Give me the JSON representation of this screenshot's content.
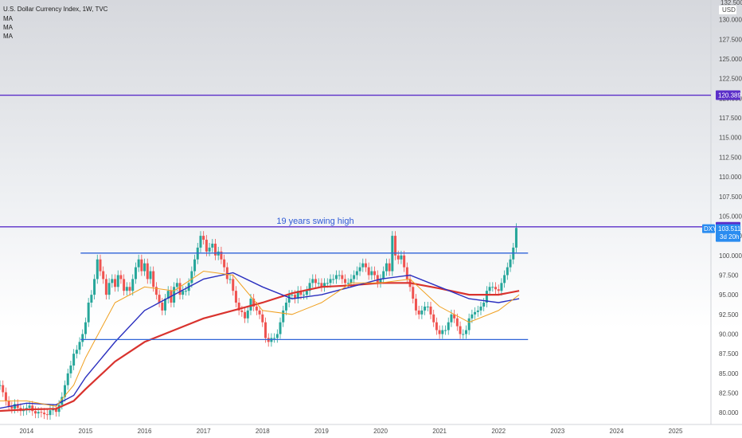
{
  "chart_data": {
    "type": "candlestick",
    "title": "U.S. Dollar Currency Index, 1W, TVC",
    "indicators": [
      "MA",
      "MA",
      "MA"
    ],
    "currency": "USD",
    "symbol": "DXY",
    "ylim": [
      78.5,
      132.5
    ],
    "y_ticks": [
      "80.000",
      "82.500",
      "85.000",
      "87.500",
      "90.000",
      "92.500",
      "95.000",
      "97.500",
      "100.000",
      "102.500",
      "105.000",
      "107.500",
      "110.000",
      "112.500",
      "115.000",
      "117.500",
      "120.000",
      "122.500",
      "125.000",
      "127.500",
      "130.000"
    ],
    "top_partial_label": "132.500",
    "x_ticks": [
      "2014",
      "2015",
      "2016",
      "2017",
      "2018",
      "2019",
      "2020",
      "2021",
      "2022",
      "2023",
      "2024",
      "2025"
    ],
    "horizontal_lines": [
      {
        "value": 120.389,
        "label": "120.389",
        "color": "#5b2fc9"
      },
      {
        "value": 103.646,
        "label": "103.646",
        "color": "#5b2fc9"
      }
    ],
    "range_lines": [
      {
        "value": 100.3,
        "from": "2014-12",
        "to": "2022-07",
        "color": "#2f64d8"
      },
      {
        "value": 89.3,
        "from": "2014-12",
        "to": "2022-07",
        "color": "#2f64d8"
      }
    ],
    "annotation": "19 years swing high",
    "price_badge": {
      "symbol": "DXY",
      "value": "103.511",
      "countdown": "3d 20h"
    },
    "candles_close": [
      [
        2013.55,
        83.5
      ],
      [
        2013.6,
        82.6
      ],
      [
        2013.65,
        81.5
      ],
      [
        2013.7,
        80.8
      ],
      [
        2013.75,
        80.5
      ],
      [
        2013.8,
        81.1
      ],
      [
        2013.85,
        80.6
      ],
      [
        2013.9,
        80.2
      ],
      [
        2013.95,
        80.3
      ],
      [
        2014.0,
        80.6
      ],
      [
        2014.05,
        80.9
      ],
      [
        2014.1,
        80.2
      ],
      [
        2014.15,
        79.9
      ],
      [
        2014.2,
        80.1
      ],
      [
        2014.25,
        80.0
      ],
      [
        2014.3,
        79.8
      ],
      [
        2014.35,
        79.7
      ],
      [
        2014.4,
        80.3
      ],
      [
        2014.45,
        80.5
      ],
      [
        2014.5,
        80.1
      ],
      [
        2014.55,
        81.0
      ],
      [
        2014.6,
        82.0
      ],
      [
        2014.65,
        83.5
      ],
      [
        2014.7,
        85.0
      ],
      [
        2014.75,
        86.0
      ],
      [
        2014.8,
        87.5
      ],
      [
        2014.85,
        88.0
      ],
      [
        2014.9,
        89.0
      ],
      [
        2014.95,
        90.0
      ],
      [
        2015.0,
        91.5
      ],
      [
        2015.05,
        94.0
      ],
      [
        2015.1,
        95.0
      ],
      [
        2015.15,
        97.0
      ],
      [
        2015.2,
        99.5
      ],
      [
        2015.25,
        98.0
      ],
      [
        2015.3,
        97.0
      ],
      [
        2015.35,
        95.0
      ],
      [
        2015.4,
        96.5
      ],
      [
        2015.45,
        97.0
      ],
      [
        2015.5,
        96.0
      ],
      [
        2015.55,
        97.5
      ],
      [
        2015.6,
        97.0
      ],
      [
        2015.65,
        95.5
      ],
      [
        2015.7,
        96.0
      ],
      [
        2015.75,
        95.5
      ],
      [
        2015.8,
        97.0
      ],
      [
        2015.85,
        98.5
      ],
      [
        2015.9,
        99.5
      ],
      [
        2015.95,
        98.0
      ],
      [
        2016.0,
        99.0
      ],
      [
        2016.05,
        97.0
      ],
      [
        2016.1,
        98.0
      ],
      [
        2016.15,
        96.0
      ],
      [
        2016.2,
        95.0
      ],
      [
        2016.25,
        94.0
      ],
      [
        2016.3,
        93.0
      ],
      [
        2016.35,
        94.5
      ],
      [
        2016.4,
        95.5
      ],
      [
        2016.45,
        94.0
      ],
      [
        2016.5,
        96.0
      ],
      [
        2016.55,
        96.5
      ],
      [
        2016.6,
        95.0
      ],
      [
        2016.65,
        95.5
      ],
      [
        2016.7,
        95.5
      ],
      [
        2016.75,
        96.5
      ],
      [
        2016.8,
        98.0
      ],
      [
        2016.85,
        99.5
      ],
      [
        2016.9,
        101.0
      ],
      [
        2016.95,
        102.5
      ],
      [
        2017.0,
        102.0
      ],
      [
        2017.05,
        100.5
      ],
      [
        2017.1,
        101.0
      ],
      [
        2017.15,
        101.5
      ],
      [
        2017.2,
        100.0
      ],
      [
        2017.25,
        100.5
      ],
      [
        2017.3,
        99.5
      ],
      [
        2017.35,
        98.5
      ],
      [
        2017.4,
        97.0
      ],
      [
        2017.45,
        97.0
      ],
      [
        2017.5,
        95.5
      ],
      [
        2017.55,
        94.0
      ],
      [
        2017.6,
        93.0
      ],
      [
        2017.65,
        92.8
      ],
      [
        2017.7,
        92.0
      ],
      [
        2017.75,
        93.0
      ],
      [
        2017.8,
        94.5
      ],
      [
        2017.85,
        93.5
      ],
      [
        2017.9,
        93.0
      ],
      [
        2017.95,
        92.5
      ],
      [
        2018.0,
        91.5
      ],
      [
        2018.05,
        89.5
      ],
      [
        2018.1,
        89.0
      ],
      [
        2018.15,
        89.5
      ],
      [
        2018.2,
        89.5
      ],
      [
        2018.25,
        90.0
      ],
      [
        2018.3,
        91.5
      ],
      [
        2018.35,
        93.0
      ],
      [
        2018.4,
        94.0
      ],
      [
        2018.45,
        95.0
      ],
      [
        2018.5,
        95.0
      ],
      [
        2018.55,
        94.5
      ],
      [
        2018.6,
        95.5
      ],
      [
        2018.65,
        95.0
      ],
      [
        2018.7,
        95.0
      ],
      [
        2018.75,
        95.5
      ],
      [
        2018.8,
        96.5
      ],
      [
        2018.85,
        97.0
      ],
      [
        2018.9,
        96.5
      ],
      [
        2018.95,
        96.5
      ],
      [
        2019.0,
        96.0
      ],
      [
        2019.05,
        96.5
      ],
      [
        2019.1,
        96.5
      ],
      [
        2019.15,
        97.0
      ],
      [
        2019.2,
        97.0
      ],
      [
        2019.25,
        97.5
      ],
      [
        2019.3,
        97.5
      ],
      [
        2019.35,
        97.0
      ],
      [
        2019.4,
        96.5
      ],
      [
        2019.45,
        96.5
      ],
      [
        2019.5,
        97.0
      ],
      [
        2019.55,
        97.5
      ],
      [
        2019.6,
        98.0
      ],
      [
        2019.65,
        98.5
      ],
      [
        2019.7,
        99.0
      ],
      [
        2019.75,
        98.5
      ],
      [
        2019.8,
        97.5
      ],
      [
        2019.85,
        98.0
      ],
      [
        2019.9,
        97.5
      ],
      [
        2019.95,
        96.5
      ],
      [
        2020.0,
        97.0
      ],
      [
        2020.05,
        98.0
      ],
      [
        2020.1,
        99.0
      ],
      [
        2020.15,
        98.0
      ],
      [
        2020.2,
        102.5
      ],
      [
        2020.25,
        100.0
      ],
      [
        2020.3,
        99.5
      ],
      [
        2020.35,
        100.0
      ],
      [
        2020.4,
        98.5
      ],
      [
        2020.45,
        97.0
      ],
      [
        2020.5,
        96.0
      ],
      [
        2020.55,
        94.5
      ],
      [
        2020.6,
        93.0
      ],
      [
        2020.65,
        92.5
      ],
      [
        2020.7,
        93.0
      ],
      [
        2020.75,
        93.5
      ],
      [
        2020.8,
        93.5
      ],
      [
        2020.85,
        92.5
      ],
      [
        2020.9,
        91.5
      ],
      [
        2020.95,
        90.5
      ],
      [
        2021.0,
        90.0
      ],
      [
        2021.05,
        90.5
      ],
      [
        2021.1,
        90.5
      ],
      [
        2021.15,
        91.5
      ],
      [
        2021.2,
        92.5
      ],
      [
        2021.25,
        92.0
      ],
      [
        2021.3,
        91.0
      ],
      [
        2021.35,
        90.0
      ],
      [
        2021.4,
        90.0
      ],
      [
        2021.45,
        90.5
      ],
      [
        2021.5,
        92.0
      ],
      [
        2021.55,
        92.5
      ],
      [
        2021.6,
        92.8
      ],
      [
        2021.65,
        93.0
      ],
      [
        2021.7,
        93.5
      ],
      [
        2021.75,
        94.0
      ],
      [
        2021.8,
        95.5
      ],
      [
        2021.85,
        96.0
      ],
      [
        2021.9,
        96.0
      ],
      [
        2021.95,
        95.7
      ],
      [
        2022.0,
        95.5
      ],
      [
        2022.05,
        96.5
      ],
      [
        2022.1,
        97.5
      ],
      [
        2022.15,
        98.5
      ],
      [
        2022.2,
        99.5
      ],
      [
        2022.25,
        101.0
      ],
      [
        2022.3,
        103.5
      ]
    ],
    "ma_series": [
      {
        "color": "#d9332e",
        "points": [
          [
            2013.5,
            80.2
          ],
          [
            2014.0,
            80.4
          ],
          [
            2014.5,
            80.5
          ],
          [
            2014.8,
            81.5
          ],
          [
            2015.0,
            83.0
          ],
          [
            2015.5,
            86.5
          ],
          [
            2016.0,
            89.0
          ],
          [
            2016.5,
            90.5
          ],
          [
            2017.0,
            92.0
          ],
          [
            2017.5,
            93.0
          ],
          [
            2018.0,
            94.0
          ],
          [
            2018.5,
            95.2
          ],
          [
            2019.0,
            96.0
          ],
          [
            2019.5,
            96.2
          ],
          [
            2020.0,
            96.5
          ],
          [
            2020.5,
            96.5
          ],
          [
            2021.0,
            95.8
          ],
          [
            2021.5,
            95.0
          ],
          [
            2022.0,
            95.0
          ],
          [
            2022.35,
            95.5
          ]
        ]
      },
      {
        "color": "#2a2fbf",
        "points": [
          [
            2013.5,
            80.5
          ],
          [
            2014.0,
            81.2
          ],
          [
            2014.5,
            81.0
          ],
          [
            2014.8,
            82.2
          ],
          [
            2015.0,
            84.5
          ],
          [
            2015.5,
            89.0
          ],
          [
            2016.0,
            93.0
          ],
          [
            2016.5,
            95.0
          ],
          [
            2017.0,
            97.0
          ],
          [
            2017.5,
            97.8
          ],
          [
            2018.0,
            96.0
          ],
          [
            2018.5,
            94.5
          ],
          [
            2019.0,
            95.0
          ],
          [
            2019.5,
            96.0
          ],
          [
            2020.0,
            97.0
          ],
          [
            2020.5,
            97.5
          ],
          [
            2021.0,
            96.0
          ],
          [
            2021.5,
            94.5
          ],
          [
            2022.0,
            94.0
          ],
          [
            2022.35,
            94.5
          ]
        ]
      },
      {
        "color": "#f0a020",
        "points": [
          [
            2013.5,
            81.5
          ],
          [
            2014.0,
            81.5
          ],
          [
            2014.5,
            80.8
          ],
          [
            2014.8,
            83.5
          ],
          [
            2015.0,
            87.0
          ],
          [
            2015.5,
            94.0
          ],
          [
            2016.0,
            96.0
          ],
          [
            2016.5,
            95.5
          ],
          [
            2017.0,
            98.0
          ],
          [
            2017.5,
            97.5
          ],
          [
            2018.0,
            93.0
          ],
          [
            2018.5,
            92.5
          ],
          [
            2019.0,
            94.0
          ],
          [
            2019.5,
            96.5
          ],
          [
            2020.0,
            96.5
          ],
          [
            2020.5,
            97.0
          ],
          [
            2021.0,
            93.5
          ],
          [
            2021.5,
            91.5
          ],
          [
            2022.0,
            93.0
          ],
          [
            2022.35,
            95.0
          ]
        ]
      }
    ]
  },
  "axis": {
    "x_domain": [
      2013.55,
      2025.6
    ]
  },
  "colors": {
    "background": "#ffffff",
    "up_candle": "#26a69a",
    "down_candle": "#ef5350",
    "line_purple": "#5b2fc9",
    "line_blue": "#2f64d8",
    "badge_blue": "#2a8cf0"
  }
}
